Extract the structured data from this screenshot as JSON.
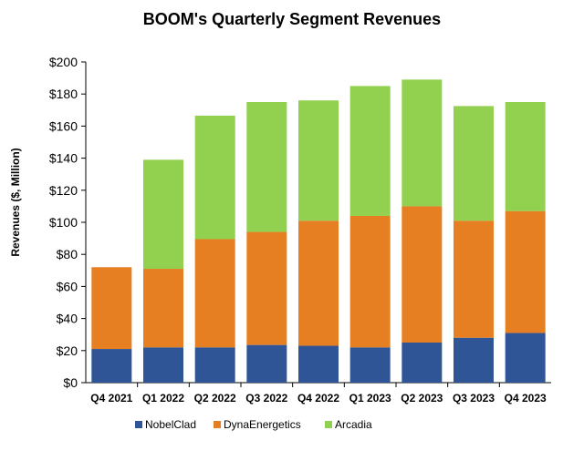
{
  "chart_data": {
    "type": "bar",
    "stacked": true,
    "title": "BOOM's Quarterly Segment Revenues",
    "xlabel": "",
    "ylabel": "Revenues ($, Million)",
    "ylim": [
      0,
      200
    ],
    "ytick_step": 20,
    "ytick_labels": [
      "$0",
      "$20",
      "$40",
      "$60",
      "$80",
      "$100",
      "$120",
      "$140",
      "$160",
      "$180",
      "$200"
    ],
    "grid": false,
    "legend_position": "bottom",
    "categories": [
      "Q4 2021",
      "Q1 2022",
      "Q2 2022",
      "Q3 2022",
      "Q4 2022",
      "Q1 2023",
      "Q2 2023",
      "Q3 2023",
      "Q4 2023"
    ],
    "series": [
      {
        "name": "NobelClad",
        "color": "#2f5597",
        "values": [
          21,
          22,
          22,
          23.5,
          23,
          22,
          25,
          28,
          31
        ]
      },
      {
        "name": "DynaEnergetics",
        "color": "#e67e22",
        "values": [
          51,
          49,
          67.5,
          70.5,
          78,
          82,
          85,
          73,
          76
        ]
      },
      {
        "name": "Arcadia",
        "color": "#92d050",
        "values": [
          0,
          68,
          77,
          81,
          75,
          81,
          79,
          71.5,
          68
        ]
      }
    ]
  }
}
